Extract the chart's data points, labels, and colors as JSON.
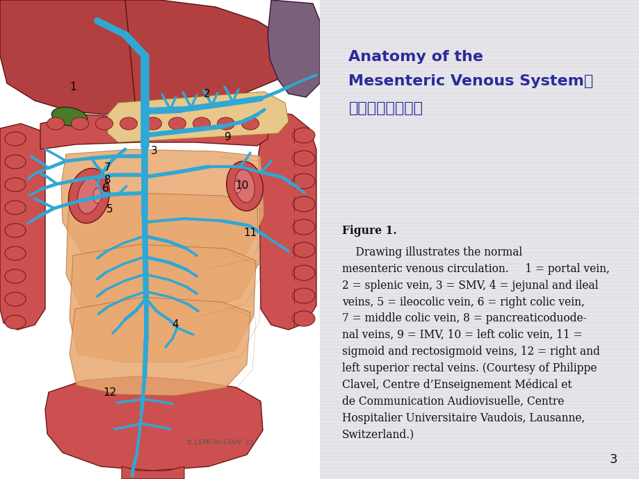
{
  "bg_color": "#e5e5ea",
  "title_line1": "Anatomy of the",
  "title_line2": "Mesenteric Venous System肠",
  "title_line3": "系膜静脉系统解剖",
  "title_color": "#2b2b9a",
  "title_fontsize": 16,
  "caption_label": "Figure 1.",
  "caption_body": "    Drawing illustrates the normal mesenteric venous circulation. 1 = portal vein, 2 = splenic vein, 3 = SMV, 4 = jejunal and ileal veins, 5 = ileocolic vein, 6 = right colic vein, 7 = middle colic vein, 8 = pancreaticoduodenal veins, 9 = IMV, 10 = left colic vein, 11 = sigmoid and rectosigmoid veins, 12 = right and left superior rectal veins. (Courtesy of Philippe Clavel, Centre d’Enseignement Médical et de Communication Audiovisuelle, Centre Hospitalier Universitaire Vaudois, Lausanne, Switzerland.)",
  "caption_fontsize": 11.2,
  "page_number": "3",
  "blue": "#2fa8d5",
  "liver_color": "#b34040",
  "liver_edge": "#5a1010",
  "gb_color": "#4a7a2a",
  "spleen_color": "#7a607a",
  "colon_color": "#cc5050",
  "colon_edge": "#6a1515",
  "si_color": "#e8a870",
  "si_edge": "#b07040",
  "kidney_color": "#cc5050",
  "kidney_inner": "#d97070",
  "pancreas_color": "#e8c88a",
  "rectum_color": "#cc5050"
}
